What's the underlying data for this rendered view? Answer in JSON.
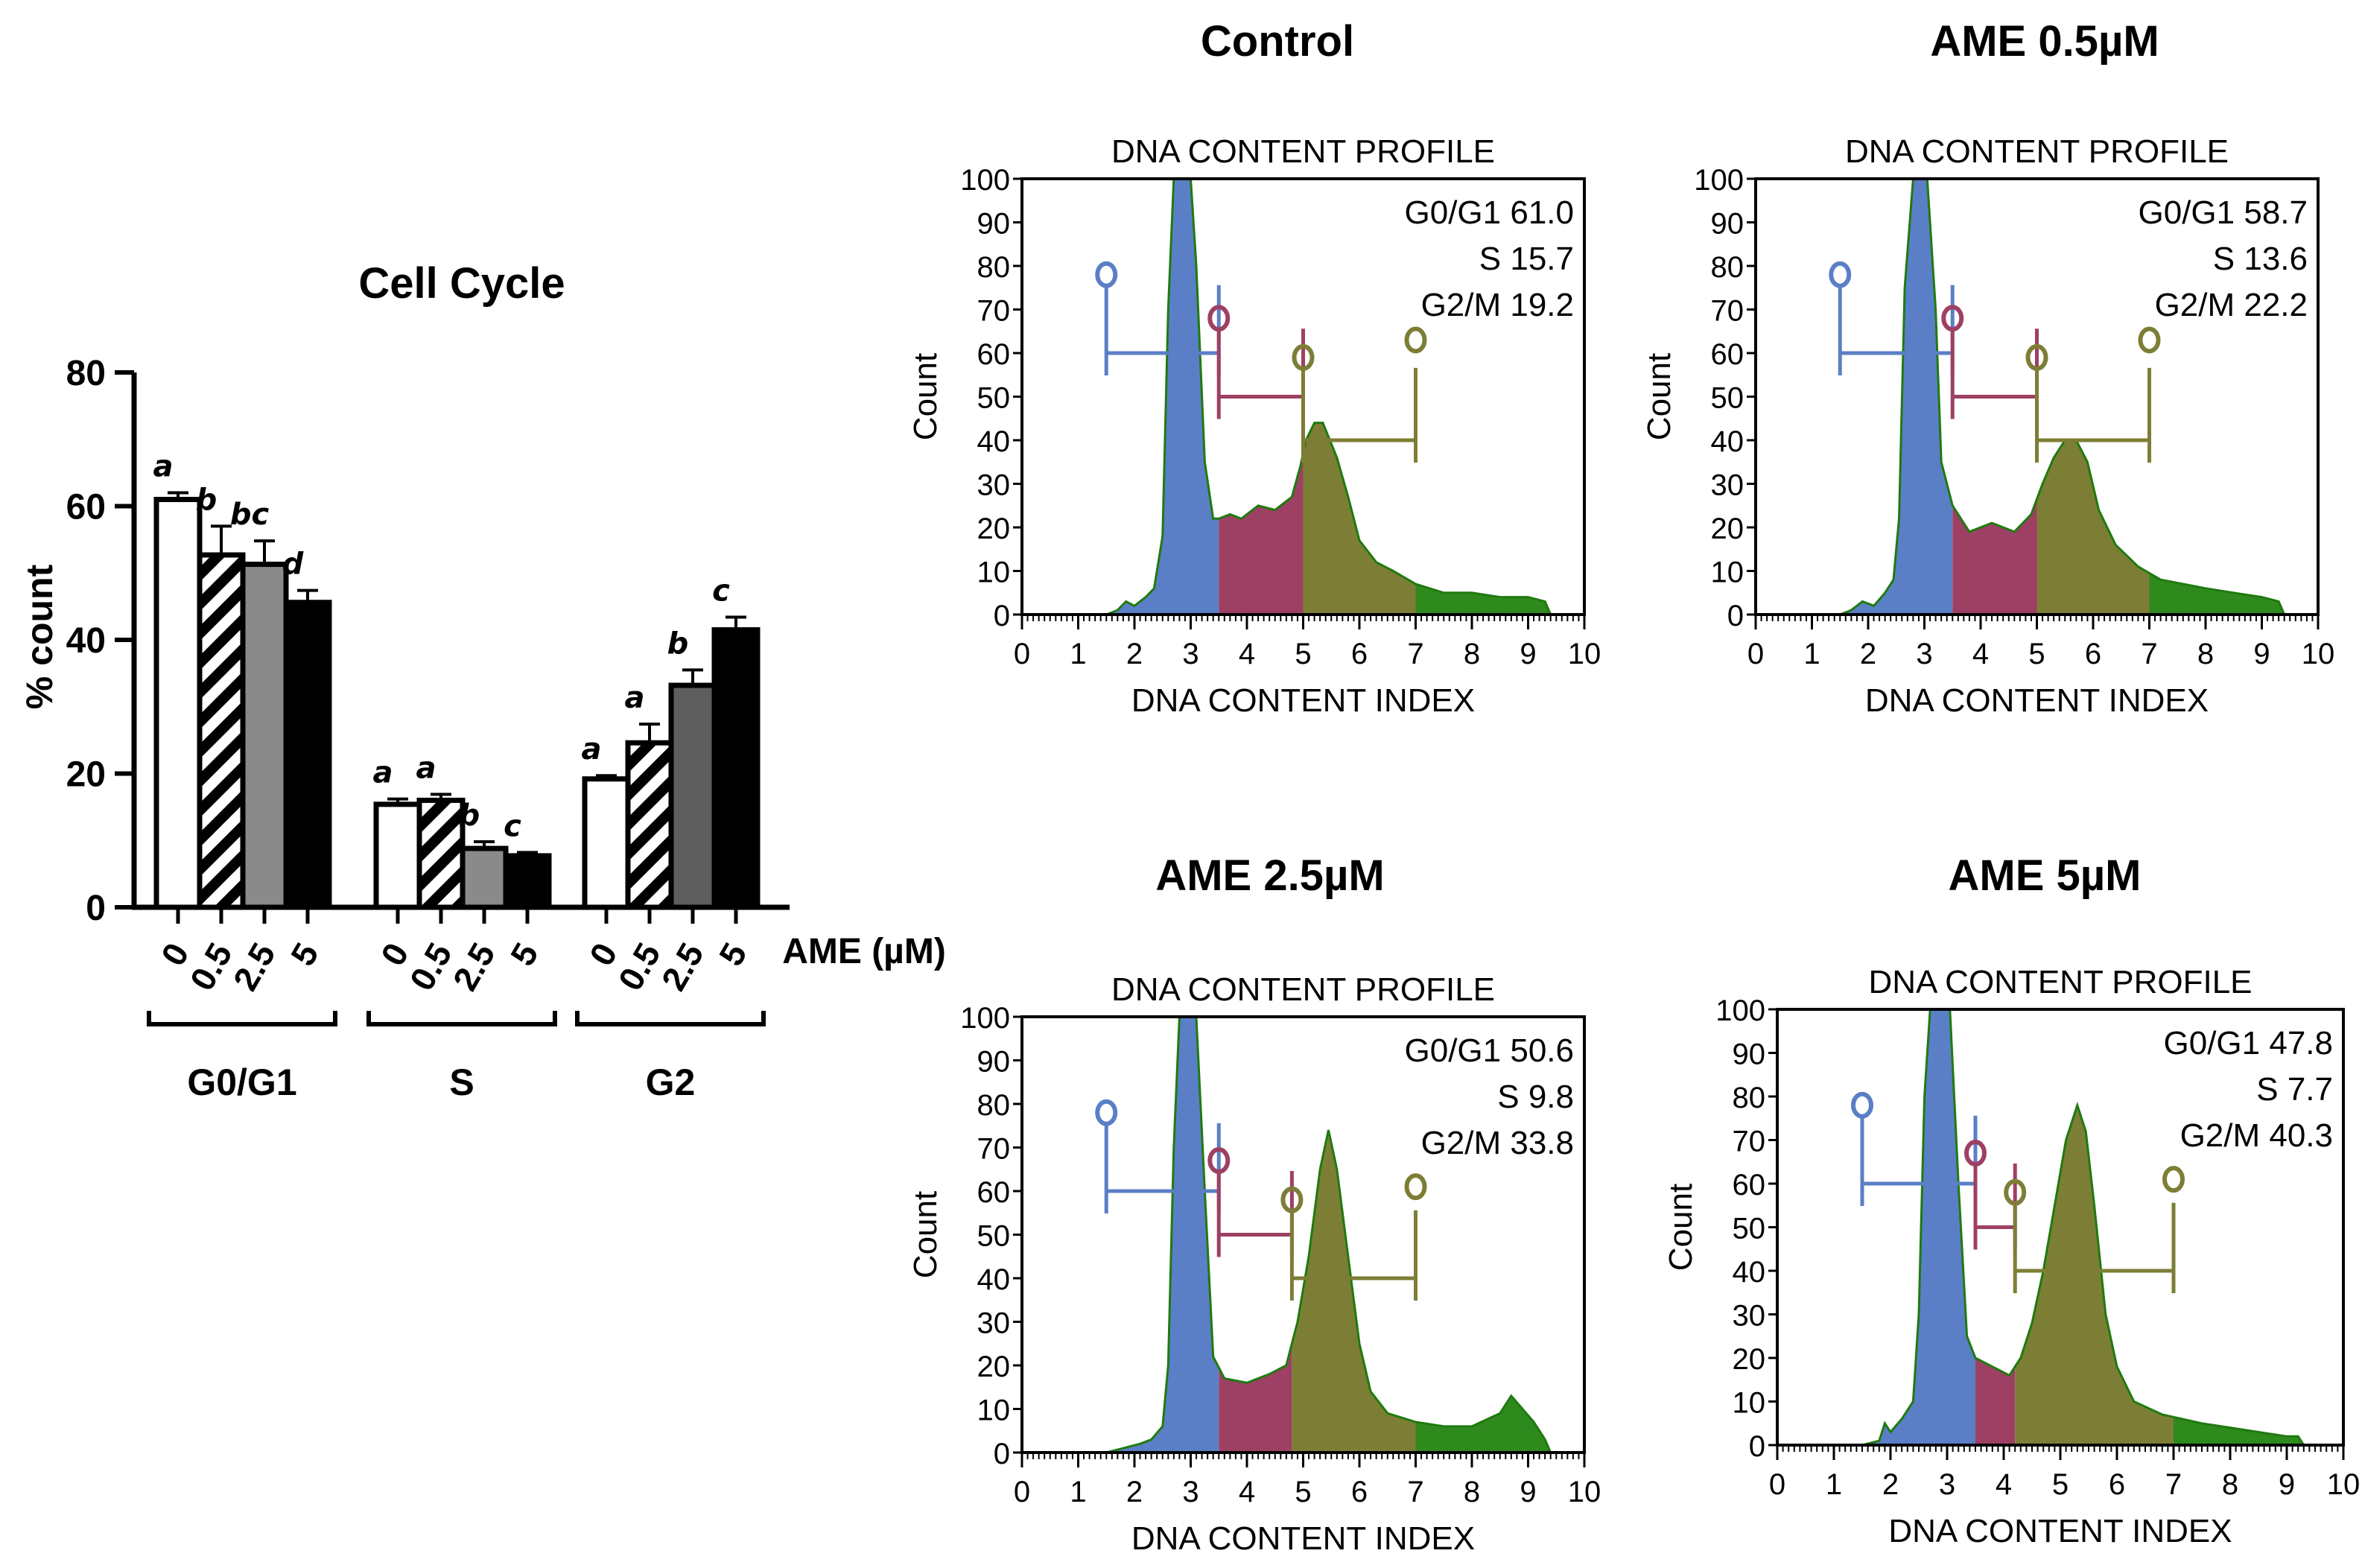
{
  "colors": {
    "g1_fill": "#5b7fc6",
    "s_fill": "#9e4064",
    "g2_fill": "#7d7e36",
    "tail_fill": "#2e8a1c",
    "g1_marker": "#5b7fc6",
    "s_marker": "#9e4064",
    "g2_marker": "#7d7e36",
    "bar_0": "#ffffff",
    "bar_2_5": "#8a8a8a",
    "bar_5": "#000000"
  },
  "chart_data": [
    {
      "type": "bar",
      "title": "Cell Cycle",
      "ylabel": "% count",
      "xlabel": "AME (µM)",
      "ylim": [
        0,
        80
      ],
      "yticks": [
        "0",
        "20",
        "40",
        "60",
        "80"
      ],
      "groups": [
        {
          "name": "G0/G1",
          "doses": [
            "0",
            "0.5",
            "2.5",
            "5"
          ],
          "values": [
            61.0,
            52.7,
            51.3,
            45.6
          ],
          "errors": [
            1.0,
            4.3,
            3.5,
            1.8
          ],
          "letters": [
            "a",
            "b",
            "bc",
            "d"
          ],
          "patterns": [
            "white",
            "hatch",
            "gray",
            "black"
          ]
        },
        {
          "name": "S",
          "doses": [
            "0",
            "0.5",
            "2.5",
            "5"
          ],
          "values": [
            15.4,
            16.0,
            8.8,
            7.7
          ],
          "errors": [
            0.8,
            0.9,
            1.0,
            0.5
          ],
          "letters": [
            "a",
            "a",
            "b",
            "c"
          ],
          "patterns": [
            "white",
            "hatch",
            "gray",
            "black"
          ]
        },
        {
          "name": "G2",
          "doses": [
            "0",
            "0.5",
            "2.5",
            "5"
          ],
          "values": [
            19.2,
            24.6,
            33.2,
            41.5
          ],
          "errors": [
            0.5,
            2.8,
            2.3,
            1.9
          ],
          "letters": [
            "a",
            "a",
            "b",
            "c"
          ],
          "patterns": [
            "white",
            "hatch",
            "darkgray",
            "black"
          ]
        }
      ]
    },
    {
      "type": "area",
      "panel_title": "Control",
      "plot_title": "DNA CONTENT PROFILE",
      "xlabel": "DNA CONTENT INDEX",
      "ylabel": "Count",
      "xlim": [
        0,
        10
      ],
      "ylim": [
        0,
        100
      ],
      "xticks": [
        "0",
        "1",
        "2",
        "3",
        "4",
        "5",
        "6",
        "7",
        "8",
        "9",
        "10"
      ],
      "yticks": [
        "0",
        "10",
        "20",
        "30",
        "40",
        "50",
        "60",
        "70",
        "80",
        "90",
        "100"
      ],
      "stats": [
        "G0/G1 61.0",
        "S 15.7",
        "G2/M 19.2"
      ],
      "gates": {
        "g1": [
          1.5,
          3.5,
          60,
          78
        ],
        "s": [
          3.5,
          5.0,
          50,
          68
        ],
        "g2": [
          5.0,
          7.0,
          40,
          59
        ],
        "g2_top": 49
      },
      "profile": [
        [
          0,
          0
        ],
        [
          1.5,
          0
        ],
        [
          1.7,
          1
        ],
        [
          1.85,
          3
        ],
        [
          2.0,
          2
        ],
        [
          2.2,
          4
        ],
        [
          2.35,
          6
        ],
        [
          2.5,
          18
        ],
        [
          2.6,
          70
        ],
        [
          2.7,
          100
        ],
        [
          3.0,
          100
        ],
        [
          3.1,
          80
        ],
        [
          3.25,
          35
        ],
        [
          3.4,
          22
        ],
        [
          3.5,
          22
        ],
        [
          3.7,
          23
        ],
        [
          3.9,
          22
        ],
        [
          4.2,
          25
        ],
        [
          4.5,
          24
        ],
        [
          4.8,
          27
        ],
        [
          4.95,
          34
        ],
        [
          5.05,
          40
        ],
        [
          5.2,
          44
        ],
        [
          5.35,
          44
        ],
        [
          5.6,
          36
        ],
        [
          5.8,
          27
        ],
        [
          6.0,
          17
        ],
        [
          6.3,
          12
        ],
        [
          6.6,
          10
        ],
        [
          7.0,
          7
        ],
        [
          7.5,
          5
        ],
        [
          8.0,
          5
        ],
        [
          8.5,
          4
        ],
        [
          9.0,
          4
        ],
        [
          9.3,
          3
        ],
        [
          9.4,
          0
        ],
        [
          10,
          0
        ]
      ]
    },
    {
      "type": "area",
      "panel_title": "AME 0.5µM",
      "plot_title": "DNA CONTENT PROFILE",
      "xlabel": "DNA CONTENT INDEX",
      "ylabel": "Count",
      "xlim": [
        0,
        10
      ],
      "ylim": [
        0,
        100
      ],
      "xticks": [
        "0",
        "1",
        "2",
        "3",
        "4",
        "5",
        "6",
        "7",
        "8",
        "9",
        "10"
      ],
      "yticks": [
        "0",
        "10",
        "20",
        "30",
        "40",
        "50",
        "60",
        "70",
        "80",
        "90",
        "100"
      ],
      "stats": [
        "G0/G1 58.7",
        "S 13.6",
        "G2/M 22.2"
      ],
      "gates": {
        "g1": [
          1.5,
          3.5,
          60,
          78
        ],
        "s": [
          3.5,
          5.0,
          50,
          68
        ],
        "g2": [
          5.0,
          7.0,
          40,
          59
        ],
        "g2_top": 49
      },
      "profile": [
        [
          0,
          0
        ],
        [
          1.5,
          0
        ],
        [
          1.7,
          1
        ],
        [
          1.9,
          3
        ],
        [
          2.1,
          2
        ],
        [
          2.3,
          5
        ],
        [
          2.45,
          8
        ],
        [
          2.55,
          22
        ],
        [
          2.65,
          75
        ],
        [
          2.8,
          100
        ],
        [
          3.05,
          100
        ],
        [
          3.2,
          70
        ],
        [
          3.3,
          35
        ],
        [
          3.5,
          25
        ],
        [
          3.8,
          19
        ],
        [
          4.2,
          21
        ],
        [
          4.6,
          19
        ],
        [
          4.9,
          23
        ],
        [
          5.1,
          30
        ],
        [
          5.3,
          36
        ],
        [
          5.5,
          40
        ],
        [
          5.7,
          40
        ],
        [
          5.9,
          35
        ],
        [
          6.1,
          24
        ],
        [
          6.4,
          16
        ],
        [
          6.8,
          11
        ],
        [
          7.2,
          8
        ],
        [
          7.6,
          7
        ],
        [
          8.0,
          6
        ],
        [
          8.5,
          5
        ],
        [
          9.0,
          4
        ],
        [
          9.3,
          3
        ],
        [
          9.4,
          0
        ],
        [
          10,
          0
        ]
      ]
    },
    {
      "type": "area",
      "panel_title": "AME 2.5µM",
      "plot_title": "DNA CONTENT PROFILE",
      "xlabel": "DNA CONTENT INDEX",
      "ylabel": "Count",
      "xlim": [
        0,
        10
      ],
      "ylim": [
        0,
        100
      ],
      "xticks": [
        "0",
        "1",
        "2",
        "3",
        "4",
        "5",
        "6",
        "7",
        "8",
        "9",
        "10"
      ],
      "yticks": [
        "0",
        "10",
        "20",
        "30",
        "40",
        "50",
        "60",
        "70",
        "80",
        "90",
        "100"
      ],
      "stats": [
        "G0/G1 50.6",
        "S 9.8",
        "G2/M 33.8"
      ],
      "gates": {
        "g1": [
          1.5,
          3.5,
          60,
          78
        ],
        "s": [
          3.5,
          4.8,
          50,
          67
        ],
        "g2": [
          4.8,
          7.0,
          40,
          58
        ],
        "g2_top": 47
      },
      "profile": [
        [
          0,
          0
        ],
        [
          1.5,
          0
        ],
        [
          1.8,
          1
        ],
        [
          2.1,
          2
        ],
        [
          2.3,
          3
        ],
        [
          2.5,
          6
        ],
        [
          2.6,
          20
        ],
        [
          2.7,
          70
        ],
        [
          2.8,
          100
        ],
        [
          3.1,
          100
        ],
        [
          3.25,
          60
        ],
        [
          3.4,
          22
        ],
        [
          3.6,
          17
        ],
        [
          4.0,
          16
        ],
        [
          4.4,
          18
        ],
        [
          4.7,
          20
        ],
        [
          4.9,
          30
        ],
        [
          5.1,
          45
        ],
        [
          5.3,
          65
        ],
        [
          5.45,
          74
        ],
        [
          5.6,
          65
        ],
        [
          5.8,
          45
        ],
        [
          6.0,
          25
        ],
        [
          6.2,
          14
        ],
        [
          6.5,
          9
        ],
        [
          7.0,
          7
        ],
        [
          7.5,
          6
        ],
        [
          8.0,
          6
        ],
        [
          8.5,
          9
        ],
        [
          8.7,
          13
        ],
        [
          8.9,
          10
        ],
        [
          9.1,
          7
        ],
        [
          9.3,
          3
        ],
        [
          9.4,
          0
        ],
        [
          10,
          0
        ]
      ]
    },
    {
      "type": "area",
      "panel_title": "AME 5µM",
      "plot_title": "DNA CONTENT PROFILE",
      "xlabel": "DNA CONTENT INDEX",
      "ylabel": "Count",
      "xlim": [
        0,
        10
      ],
      "ylim": [
        0,
        100
      ],
      "xticks": [
        "0",
        "1",
        "2",
        "3",
        "4",
        "5",
        "6",
        "7",
        "8",
        "9",
        "10"
      ],
      "yticks": [
        "0",
        "10",
        "20",
        "30",
        "40",
        "50",
        "60",
        "70",
        "80",
        "90",
        "100"
      ],
      "stats": [
        "G0/G1 47.8",
        "S 7.7",
        "G2/M 40.3"
      ],
      "gates": {
        "g1": [
          1.5,
          3.5,
          60,
          78
        ],
        "s": [
          3.5,
          4.2,
          50,
          67
        ],
        "g2": [
          4.2,
          7.0,
          40,
          58
        ],
        "g2_top": 47
      },
      "profile": [
        [
          0,
          0
        ],
        [
          1.5,
          0
        ],
        [
          1.8,
          1
        ],
        [
          1.9,
          5
        ],
        [
          2.0,
          3
        ],
        [
          2.2,
          6
        ],
        [
          2.4,
          10
        ],
        [
          2.5,
          30
        ],
        [
          2.6,
          80
        ],
        [
          2.7,
          100
        ],
        [
          3.05,
          100
        ],
        [
          3.2,
          60
        ],
        [
          3.35,
          25
        ],
        [
          3.5,
          20
        ],
        [
          3.8,
          18
        ],
        [
          4.1,
          16
        ],
        [
          4.3,
          20
        ],
        [
          4.5,
          28
        ],
        [
          4.7,
          40
        ],
        [
          4.9,
          55
        ],
        [
          5.1,
          70
        ],
        [
          5.3,
          78
        ],
        [
          5.45,
          72
        ],
        [
          5.6,
          55
        ],
        [
          5.8,
          30
        ],
        [
          6.0,
          18
        ],
        [
          6.3,
          10
        ],
        [
          6.8,
          7
        ],
        [
          7.5,
          5
        ],
        [
          8.0,
          4
        ],
        [
          8.5,
          3
        ],
        [
          9.0,
          2
        ],
        [
          9.2,
          2
        ],
        [
          9.3,
          0
        ],
        [
          10,
          0
        ]
      ]
    }
  ]
}
